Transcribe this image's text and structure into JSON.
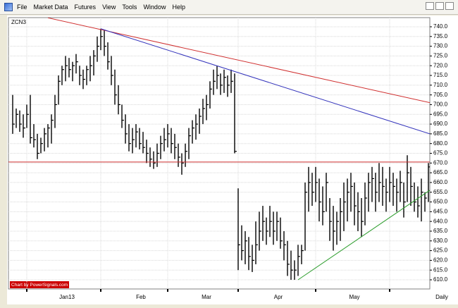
{
  "menu": [
    "File",
    "Market Data",
    "Futures",
    "View",
    "Tools",
    "Window",
    "Help"
  ],
  "chart_data": {
    "type": "hlc",
    "symbol": "ZCN3",
    "watermark": "Chart by PowerSignals.com",
    "period": "Daily",
    "color": "#000000",
    "high": [
      705,
      698,
      697,
      695,
      700,
      705,
      690,
      685,
      683,
      688,
      690,
      695,
      705,
      715,
      720,
      725,
      724,
      722,
      726,
      720,
      718,
      720,
      725,
      728,
      735,
      739,
      738,
      732,
      725,
      718,
      710,
      700,
      695,
      690,
      688,
      690,
      688,
      686,
      682,
      678,
      676,
      680,
      684,
      688,
      690,
      688,
      685,
      680,
      675,
      680,
      688,
      692,
      695,
      698,
      703,
      705,
      712,
      718,
      720,
      716,
      718,
      715,
      718,
      716,
      657,
      638,
      635,
      632,
      628,
      640,
      645,
      648,
      642,
      648,
      645,
      645,
      642,
      635,
      630,
      625,
      620,
      628,
      628,
      660,
      668,
      665,
      668,
      662,
      658,
      665,
      652,
      648,
      645,
      652,
      660,
      662,
      665,
      660,
      655,
      652,
      660,
      665,
      668,
      665,
      670,
      668,
      662,
      668,
      665,
      662,
      666,
      660,
      674,
      668,
      660,
      658,
      662,
      655,
      670
    ],
    "low": [
      685,
      688,
      686,
      683,
      688,
      680,
      678,
      672,
      675,
      676,
      678,
      680,
      688,
      700,
      710,
      712,
      714,
      712,
      716,
      710,
      708,
      710,
      712,
      715,
      722,
      728,
      725,
      718,
      710,
      700,
      695,
      688,
      680,
      676,
      675,
      678,
      677,
      675,
      670,
      668,
      667,
      668,
      672,
      676,
      678,
      675,
      672,
      668,
      664,
      668,
      672,
      680,
      682,
      685,
      690,
      692,
      698,
      705,
      708,
      705,
      706,
      704,
      706,
      675,
      615,
      620,
      618,
      615,
      614,
      618,
      625,
      630,
      628,
      632,
      628,
      630,
      626,
      620,
      612,
      610,
      610,
      612,
      618,
      625,
      645,
      648,
      650,
      640,
      638,
      645,
      630,
      625,
      628,
      630,
      635,
      640,
      645,
      638,
      635,
      632,
      638,
      645,
      650,
      645,
      650,
      648,
      645,
      650,
      648,
      645,
      650,
      642,
      650,
      648,
      645,
      642,
      640,
      645,
      650
    ],
    "close": [
      690,
      695,
      690,
      688,
      695,
      683,
      682,
      675,
      680,
      685,
      688,
      692,
      700,
      712,
      718,
      720,
      718,
      720,
      722,
      715,
      713,
      718,
      720,
      725,
      730,
      735,
      730,
      722,
      715,
      705,
      700,
      692,
      685,
      680,
      682,
      686,
      680,
      678,
      675,
      672,
      670,
      675,
      680,
      682,
      685,
      680,
      678,
      673,
      670,
      676,
      684,
      688,
      690,
      694,
      698,
      700,
      708,
      712,
      715,
      710,
      714,
      710,
      712,
      676,
      628,
      625,
      630,
      622,
      620,
      628,
      635,
      640,
      635,
      640,
      635,
      640,
      630,
      628,
      618,
      615,
      615,
      622,
      625,
      655,
      660,
      655,
      660,
      650,
      645,
      660,
      640,
      635,
      640,
      645,
      650,
      655,
      658,
      648,
      645,
      640,
      652,
      660,
      662,
      655,
      660,
      658,
      655,
      660,
      658,
      655,
      660,
      650,
      665,
      658,
      650,
      648,
      655,
      652,
      668
    ],
    "xlim": [
      -1.2,
      118.4
    ],
    "xticks": [
      4,
      25,
      44,
      64,
      86,
      107
    ],
    "x_labels": [
      {
        "value": 15.4,
        "label": "Jan13"
      },
      {
        "value": 36.4,
        "label": "Feb"
      },
      {
        "value": 55,
        "label": "Mar"
      },
      {
        "value": 75.4,
        "label": "Apr"
      },
      {
        "value": 97,
        "label": "May"
      }
    ],
    "ylim": [
      605.3,
      744.7
    ],
    "yticks": [
      {
        "value": 610,
        "label": "610.0"
      },
      {
        "value": 615,
        "label": "615.0"
      },
      {
        "value": 620,
        "label": "620.0"
      },
      {
        "value": 625,
        "label": "625.0"
      },
      {
        "value": 630,
        "label": "630.0"
      },
      {
        "value": 635,
        "label": "635.0"
      },
      {
        "value": 640,
        "label": "640.0"
      },
      {
        "value": 645,
        "label": "645.0"
      },
      {
        "value": 650,
        "label": "650.0"
      },
      {
        "value": 655,
        "label": "655.0"
      },
      {
        "value": 660,
        "label": "660.0"
      },
      {
        "value": 665,
        "label": "665.0"
      },
      {
        "value": 670,
        "label": "670.0"
      },
      {
        "value": 675,
        "label": "675.0"
      },
      {
        "value": 680,
        "label": "680.0"
      },
      {
        "value": 685,
        "label": "685.0"
      },
      {
        "value": 690,
        "label": "690.0"
      },
      {
        "value": 695,
        "label": "695.0"
      },
      {
        "value": 700,
        "label": "700.0"
      },
      {
        "value": 705,
        "label": "705.0"
      },
      {
        "value": 710,
        "label": "710.0"
      },
      {
        "value": 715,
        "label": "715.0"
      },
      {
        "value": 720,
        "label": "720.0"
      },
      {
        "value": 725,
        "label": "725.0"
      },
      {
        "value": 730,
        "label": "730.0"
      },
      {
        "value": 735,
        "label": "735.0"
      },
      {
        "value": 740,
        "label": "740.0"
      }
    ],
    "grid": true,
    "trend_lines": [
      {
        "color": "#d03030",
        "x": [
          10,
          118.4
        ],
        "y": [
          744.6,
          701
        ]
      },
      {
        "color": "#3333bb",
        "x": [
          25,
          118.4
        ],
        "y": [
          739,
          685
        ]
      },
      {
        "color": "#d03030",
        "x": [
          -1.2,
          118.4
        ],
        "y": [
          670.5,
          670.5
        ]
      },
      {
        "color": "#2e9e2e",
        "x": [
          81,
          118.4
        ],
        "y": [
          610,
          656
        ]
      }
    ]
  }
}
